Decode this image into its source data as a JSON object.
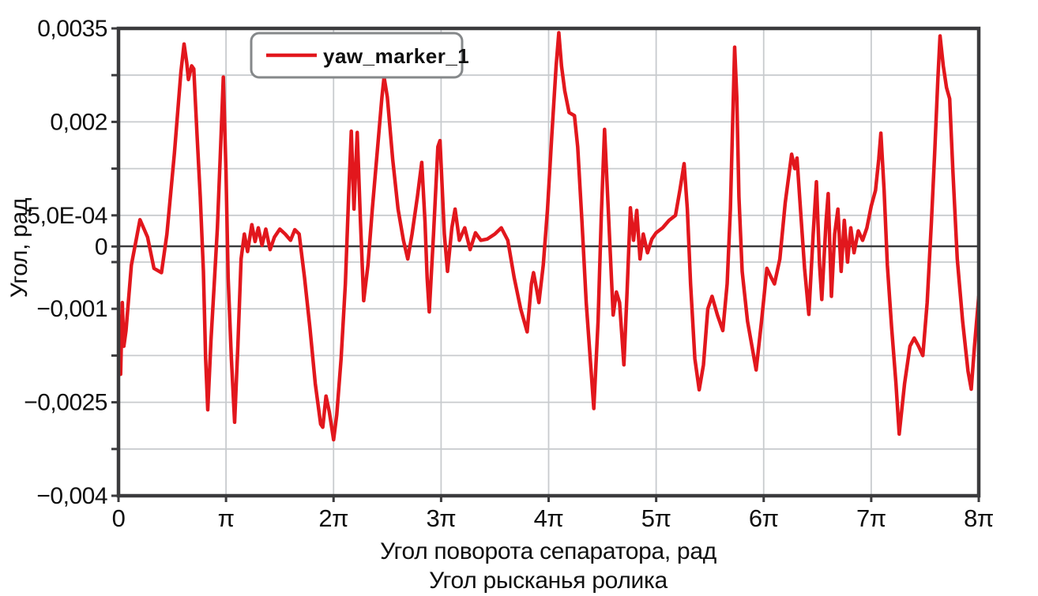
{
  "colors": {
    "series_red": "#e2171d",
    "axis_dark": "#3b3b3d",
    "grid_gray": "#c8cbce",
    "text_black": "#0f0f0f",
    "legend_border": "#85888a",
    "background": "#ffffff"
  },
  "chart_data": {
    "type": "line",
    "title": "",
    "ylabel": "Угол, рад",
    "xlabel_line1": "Угол поворота сепаратора, рад",
    "xlabel_line2": "Угол рысканья ролика",
    "x_unit": "multiples of pi, radians",
    "xlim": [
      0,
      8
    ],
    "ylim": [
      -0.004,
      0.0035
    ],
    "grid": true,
    "x_ticks": [
      {
        "value": 0,
        "label": "0"
      },
      {
        "value": 1,
        "label": "π"
      },
      {
        "value": 2,
        "label": "2π"
      },
      {
        "value": 3,
        "label": "3π"
      },
      {
        "value": 4,
        "label": "4π"
      },
      {
        "value": 5,
        "label": "5π"
      },
      {
        "value": 6,
        "label": "6π"
      },
      {
        "value": 7,
        "label": "7π"
      },
      {
        "value": 8,
        "label": "8π"
      }
    ],
    "y_ticks": [
      {
        "value": 0.0035,
        "label": "0,0035"
      },
      {
        "value": 0.002,
        "label": "0,002"
      },
      {
        "value": 0.0005,
        "label": "5,0E-04"
      },
      {
        "value": 0,
        "label": "0"
      },
      {
        "value": -0.001,
        "label": "−0,001"
      },
      {
        "value": -0.0025,
        "label": "−0,0025"
      },
      {
        "value": -0.004,
        "label": "−0,004"
      }
    ],
    "y_gridlines": [
      0.0035,
      0.00275,
      0.002,
      0.00125,
      0.0005,
      -0.00025,
      -0.001,
      -0.00175,
      -0.0025,
      -0.00325,
      -0.004
    ],
    "zero_line_value": 0,
    "legend": {
      "position": "top-left-inside",
      "entries": [
        {
          "label": "yaw_marker_1",
          "color": "#e2171d"
        }
      ]
    },
    "series": [
      {
        "name": "yaw_marker_1",
        "color": "#e2171d",
        "points": [
          [
            0.0,
            -0.0011
          ],
          [
            0.02,
            -0.00205
          ],
          [
            0.035,
            -0.0009
          ],
          [
            0.05,
            -0.0016
          ],
          [
            0.07,
            -0.00135
          ],
          [
            0.12,
            -0.0003
          ],
          [
            0.2,
            0.00043
          ],
          [
            0.27,
            0.00015
          ],
          [
            0.33,
            -0.00035
          ],
          [
            0.4,
            -0.00042
          ],
          [
            0.45,
            0.0002
          ],
          [
            0.52,
            0.0015
          ],
          [
            0.58,
            0.0028
          ],
          [
            0.61,
            0.00325
          ],
          [
            0.635,
            0.00295
          ],
          [
            0.65,
            0.00268
          ],
          [
            0.68,
            0.0029
          ],
          [
            0.7,
            0.00285
          ],
          [
            0.73,
            0.0018
          ],
          [
            0.76,
            0.0008
          ],
          [
            0.79,
            -0.0004
          ],
          [
            0.81,
            -0.0018
          ],
          [
            0.83,
            -0.00262
          ],
          [
            0.86,
            -0.0015
          ],
          [
            0.89,
            -0.0006
          ],
          [
            0.92,
            0.0003
          ],
          [
            0.95,
            0.0016
          ],
          [
            0.975,
            0.00272
          ],
          [
            1.0,
            0.0012
          ],
          [
            1.02,
            -0.0005
          ],
          [
            1.05,
            -0.0018
          ],
          [
            1.08,
            -0.00282
          ],
          [
            1.11,
            -0.0016
          ],
          [
            1.14,
            -0.0002
          ],
          [
            1.17,
            0.0002
          ],
          [
            1.2,
            -8e-05
          ],
          [
            1.24,
            0.00035
          ],
          [
            1.27,
            8e-05
          ],
          [
            1.3,
            0.0003
          ],
          [
            1.335,
            2e-05
          ],
          [
            1.37,
            0.00028
          ],
          [
            1.41,
            -5e-05
          ],
          [
            1.45,
            0.00015
          ],
          [
            1.5,
            0.00028
          ],
          [
            1.55,
            0.0002
          ],
          [
            1.6,
            0.0001
          ],
          [
            1.64,
            0.00027
          ],
          [
            1.68,
            0.0002
          ],
          [
            1.73,
            -0.0005
          ],
          [
            1.78,
            -0.0013
          ],
          [
            1.83,
            -0.0022
          ],
          [
            1.88,
            -0.00285
          ],
          [
            1.9,
            -0.0029
          ],
          [
            1.93,
            -0.0024
          ],
          [
            1.96,
            -0.00265
          ],
          [
            2.0,
            -0.0031
          ],
          [
            2.03,
            -0.0027
          ],
          [
            2.07,
            -0.0018
          ],
          [
            2.11,
            -0.0006
          ],
          [
            2.14,
            0.0008
          ],
          [
            2.165,
            0.00185
          ],
          [
            2.19,
            0.0006
          ],
          [
            2.22,
            0.00183
          ],
          [
            2.25,
            0.0004
          ],
          [
            2.28,
            -0.00087
          ],
          [
            2.32,
            -0.0003
          ],
          [
            2.36,
            0.0006
          ],
          [
            2.41,
            0.0016
          ],
          [
            2.45,
            0.0024
          ],
          [
            2.47,
            0.00272
          ],
          [
            2.5,
            0.0024
          ],
          [
            2.55,
            0.0014
          ],
          [
            2.6,
            0.0006
          ],
          [
            2.65,
            0.0001
          ],
          [
            2.69,
            -0.0002
          ],
          [
            2.73,
            0.0002
          ],
          [
            2.78,
            0.0008
          ],
          [
            2.82,
            0.00135
          ],
          [
            2.85,
            0.0004
          ],
          [
            2.87,
            -0.0005
          ],
          [
            2.89,
            -0.00105
          ],
          [
            2.93,
            0.0002
          ],
          [
            2.97,
            0.0016
          ],
          [
            2.99,
            0.0017
          ],
          [
            3.03,
            0.0002
          ],
          [
            3.06,
            -0.0004
          ],
          [
            3.1,
            0.0003
          ],
          [
            3.13,
            0.0006
          ],
          [
            3.17,
            0.0001
          ],
          [
            3.22,
            0.0003
          ],
          [
            3.27,
            -5e-05
          ],
          [
            3.32,
            0.00022
          ],
          [
            3.37,
            0.0001
          ],
          [
            3.43,
            0.00012
          ],
          [
            3.5,
            0.0002
          ],
          [
            3.56,
            0.0003
          ],
          [
            3.62,
            0.0001
          ],
          [
            3.68,
            -0.0005
          ],
          [
            3.74,
            -0.001
          ],
          [
            3.8,
            -0.00137
          ],
          [
            3.84,
            -0.0006
          ],
          [
            3.86,
            -0.00042
          ],
          [
            3.89,
            -0.0007
          ],
          [
            3.91,
            -0.0009
          ],
          [
            3.95,
            -0.0003
          ],
          [
            3.99,
            0.0006
          ],
          [
            4.03,
            0.0018
          ],
          [
            4.07,
            0.0029
          ],
          [
            4.095,
            0.00343
          ],
          [
            4.12,
            0.0029
          ],
          [
            4.15,
            0.0025
          ],
          [
            4.19,
            0.00215
          ],
          [
            4.24,
            0.0021
          ],
          [
            4.27,
            0.0016
          ],
          [
            4.31,
            0.0004
          ],
          [
            4.35,
            -0.0009
          ],
          [
            4.42,
            -0.0026
          ],
          [
            4.46,
            -0.0012
          ],
          [
            4.49,
            0.0005
          ],
          [
            4.52,
            0.00188
          ],
          [
            4.56,
            0.0004
          ],
          [
            4.6,
            -0.0011
          ],
          [
            4.63,
            -0.00073
          ],
          [
            4.66,
            -0.0009
          ],
          [
            4.7,
            -0.0019
          ],
          [
            4.73,
            -0.0007
          ],
          [
            4.76,
            0.00062
          ],
          [
            4.79,
            0.0001
          ],
          [
            4.82,
            0.00058
          ],
          [
            4.85,
            -0.0002
          ],
          [
            4.88,
            0.0002
          ],
          [
            4.92,
            -0.0001
          ],
          [
            4.96,
            0.00012
          ],
          [
            5.0,
            0.00022
          ],
          [
            5.06,
            0.0003
          ],
          [
            5.12,
            0.00042
          ],
          [
            5.18,
            0.0005
          ],
          [
            5.22,
            0.0009
          ],
          [
            5.26,
            0.00133
          ],
          [
            5.29,
            0.0006
          ],
          [
            5.32,
            -0.0006
          ],
          [
            5.36,
            -0.0018
          ],
          [
            5.4,
            -0.0023
          ],
          [
            5.44,
            -0.0019
          ],
          [
            5.48,
            -0.001
          ],
          [
            5.52,
            -0.0008
          ],
          [
            5.57,
            -0.0011
          ],
          [
            5.62,
            -0.00135
          ],
          [
            5.66,
            -0.0006
          ],
          [
            5.69,
            0.0006
          ],
          [
            5.71,
            0.0019
          ],
          [
            5.73,
            0.0032
          ],
          [
            5.75,
            0.0024
          ],
          [
            5.77,
            0.0008
          ],
          [
            5.8,
            -0.0004
          ],
          [
            5.85,
            -0.0012
          ],
          [
            5.93,
            -0.00198
          ],
          [
            5.98,
            -0.0012
          ],
          [
            6.03,
            -0.00035
          ],
          [
            6.07,
            -0.0005
          ],
          [
            6.1,
            -0.0006
          ],
          [
            6.15,
            -0.0002
          ],
          [
            6.2,
            0.0007
          ],
          [
            6.26,
            0.00148
          ],
          [
            6.29,
            0.00125
          ],
          [
            6.31,
            0.00142
          ],
          [
            6.35,
            0.0004
          ],
          [
            6.38,
            -0.00035
          ],
          [
            6.42,
            -0.00109
          ],
          [
            6.46,
            0.0002
          ],
          [
            6.49,
            0.00104
          ],
          [
            6.52,
            -0.0003
          ],
          [
            6.54,
            -0.00085
          ],
          [
            6.58,
            0.0004
          ],
          [
            6.6,
            0.00085
          ],
          [
            6.63,
            -0.0008
          ],
          [
            6.66,
            0.0002
          ],
          [
            6.69,
            0.0006
          ],
          [
            6.72,
            -0.0004
          ],
          [
            6.75,
            0.00042
          ],
          [
            6.78,
            -0.00025
          ],
          [
            6.81,
            0.0003
          ],
          [
            6.84,
            -0.0001
          ],
          [
            6.88,
            0.00025
          ],
          [
            6.92,
            0.0001
          ],
          [
            6.96,
            0.0003
          ],
          [
            7.0,
            0.00065
          ],
          [
            7.04,
            0.0009
          ],
          [
            7.07,
            0.0014
          ],
          [
            7.09,
            0.00182
          ],
          [
            7.12,
            0.0009
          ],
          [
            7.15,
            -0.0003
          ],
          [
            7.19,
            -0.0013
          ],
          [
            7.23,
            -0.0022
          ],
          [
            7.26,
            -0.00301
          ],
          [
            7.31,
            -0.0022
          ],
          [
            7.36,
            -0.0016
          ],
          [
            7.4,
            -0.00147
          ],
          [
            7.44,
            -0.0016
          ],
          [
            7.48,
            -0.00175
          ],
          [
            7.52,
            -0.0009
          ],
          [
            7.56,
            0.0004
          ],
          [
            7.59,
            0.0015
          ],
          [
            7.62,
            0.0027
          ],
          [
            7.64,
            0.00338
          ],
          [
            7.67,
            0.0029
          ],
          [
            7.7,
            0.00255
          ],
          [
            7.73,
            0.00237
          ],
          [
            7.76,
            0.0012
          ],
          [
            7.8,
            -0.0002
          ],
          [
            7.85,
            -0.0012
          ],
          [
            7.9,
            -0.002
          ],
          [
            7.93,
            -0.00229
          ],
          [
            7.96,
            -0.0016
          ],
          [
            8.0,
            -0.0008
          ]
        ]
      }
    ]
  }
}
